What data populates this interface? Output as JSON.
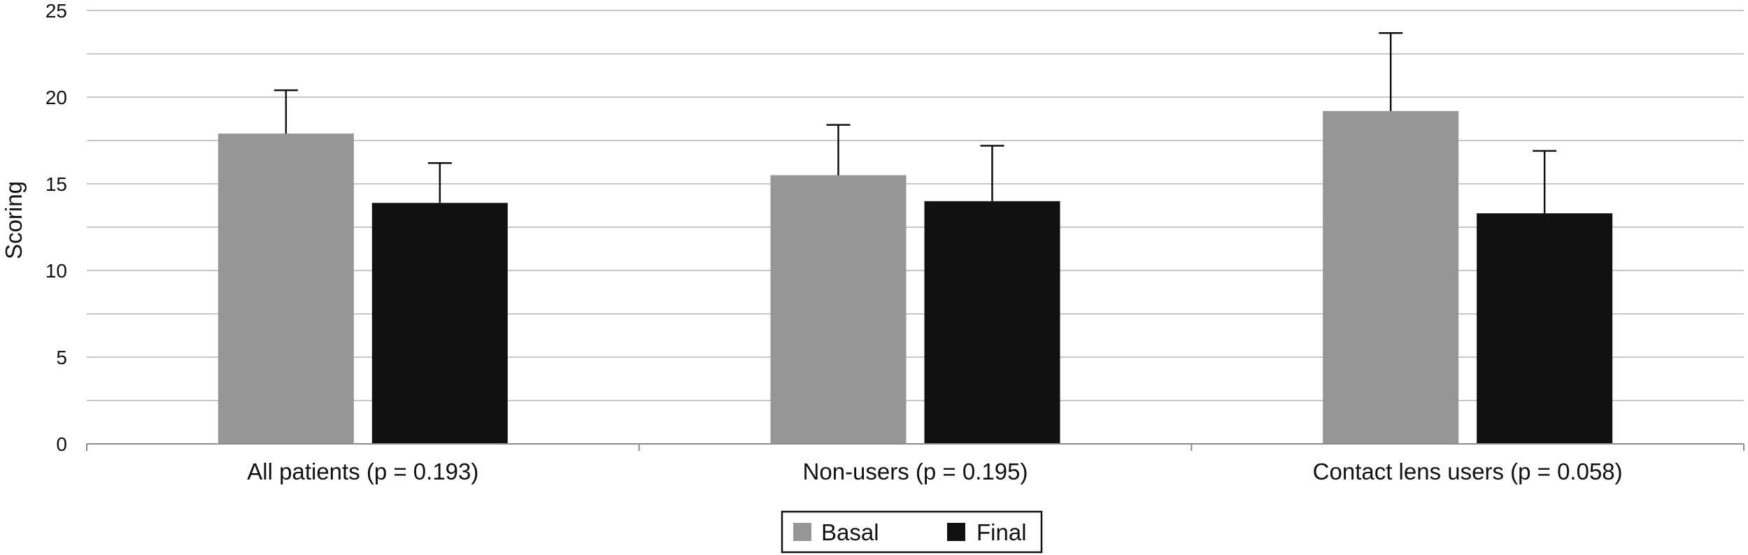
{
  "chart_data": {
    "type": "bar",
    "title": "",
    "xlabel": "",
    "ylabel": "Scoring",
    "ylim": [
      0,
      25
    ],
    "yticks": [
      0,
      5,
      10,
      15,
      20,
      25
    ],
    "grid": true,
    "legend_position": "bottom-center",
    "categories": [
      "All patients (p = 0.193)",
      "Non-users (p = 0.195)",
      "Contact lens users (p = 0.058)"
    ],
    "series": [
      {
        "name": "Basal",
        "color": "#969696",
        "values": [
          17.9,
          15.5,
          19.2
        ],
        "error_upper": [
          2.5,
          2.9,
          4.5
        ]
      },
      {
        "name": "Final",
        "color": "#111111",
        "values": [
          13.9,
          14.0,
          13.3
        ],
        "error_upper": [
          2.3,
          3.2,
          3.6
        ]
      }
    ]
  }
}
